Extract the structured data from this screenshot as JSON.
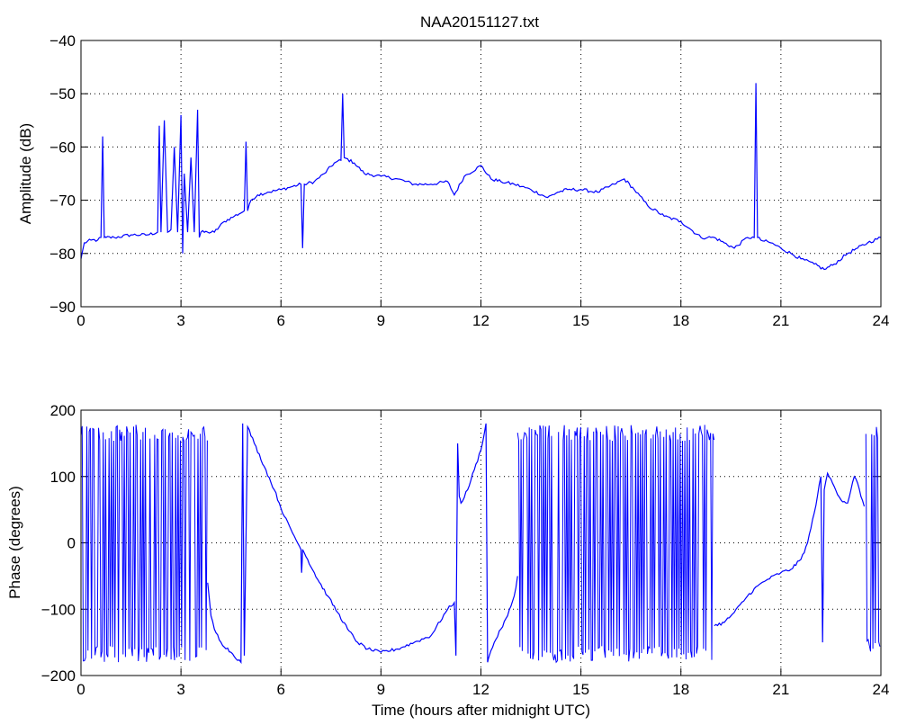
{
  "figure": {
    "title": "NAA20151127.txt"
  },
  "chart_data": [
    {
      "type": "line",
      "title": "NAA20151127.txt",
      "xlabel": "",
      "ylabel": "Amplitude (dB)",
      "xlim": [
        0,
        24
      ],
      "ylim": [
        -90,
        -40
      ],
      "xticks": [
        "0",
        "3",
        "6",
        "9",
        "12",
        "15",
        "18",
        "21",
        "24"
      ],
      "yticks": [
        "−90",
        "−80",
        "−70",
        "−60",
        "−50",
        "−40"
      ],
      "grid": true,
      "color": "#0000ff",
      "series": [
        {
          "x": [
            0,
            0.1,
            0.3,
            0.5,
            0.6,
            0.65,
            0.7,
            0.75,
            1.0,
            1.5,
            2.0,
            2.3,
            2.35,
            2.4,
            2.5,
            2.6,
            2.7,
            2.8,
            2.9,
            3.0,
            3.05,
            3.1,
            3.2,
            3.3,
            3.4,
            3.5,
            3.55,
            3.6,
            3.8,
            4.0,
            4.3,
            4.6,
            4.9,
            4.95,
            5.0,
            5.1,
            5.3,
            5.6,
            6.0,
            6.3,
            6.6,
            6.65,
            6.7,
            7.0,
            7.3,
            7.6,
            7.8,
            7.85,
            7.9,
            8.2,
            8.5,
            9.0,
            9.5,
            10.0,
            10.5,
            11.0,
            11.2,
            11.5,
            12.0,
            12.3,
            12.6,
            13.0,
            13.5,
            14.0,
            14.3,
            14.6,
            15.0,
            15.5,
            16.0,
            16.3,
            16.6,
            17.0,
            17.5,
            18.0,
            18.3,
            18.6,
            18.8,
            19.0,
            19.3,
            19.6,
            20.0,
            20.2,
            20.25,
            20.3,
            20.4,
            20.7,
            21.0,
            21.3,
            21.6,
            22.0,
            22.3,
            22.6,
            23.0,
            23.3,
            23.6,
            24.0
          ],
          "y": [
            -81,
            -78,
            -77.5,
            -77.5,
            -77,
            -58,
            -77,
            -77,
            -77,
            -76.5,
            -76.5,
            -76,
            -56,
            -76,
            -55,
            -76,
            -75.5,
            -60,
            -76,
            -54,
            -80,
            -65,
            -76,
            -62,
            -76,
            -53,
            -77,
            -76,
            -76,
            -76,
            -74,
            -73,
            -72,
            -59,
            -72,
            -70,
            -69,
            -68.5,
            -68,
            -67.5,
            -67,
            -79,
            -67,
            -66.5,
            -65,
            -63,
            -62.5,
            -50,
            -62,
            -63,
            -65,
            -65.5,
            -66,
            -67,
            -67,
            -66.5,
            -69,
            -65.5,
            -63.5,
            -66,
            -66.5,
            -67,
            -68,
            -69.5,
            -68.5,
            -68,
            -68,
            -68.5,
            -67,
            -66,
            -68,
            -71,
            -73,
            -74,
            -75.5,
            -77,
            -77,
            -77,
            -78,
            -79,
            -77,
            -77,
            -48,
            -77,
            -77.5,
            -78,
            -79,
            -80,
            -81,
            -82,
            -83,
            -82,
            -80,
            -79,
            -78,
            -77
          ]
        }
      ]
    },
    {
      "type": "line",
      "title": "",
      "xlabel": "Time (hours after midnight UTC)",
      "ylabel": "Phase (degrees)",
      "xlim": [
        0,
        24
      ],
      "ylim": [
        -200,
        200
      ],
      "xticks": [
        "0",
        "3",
        "6",
        "9",
        "12",
        "15",
        "18",
        "21",
        "24"
      ],
      "yticks": [
        "−200",
        "−100",
        "0",
        "100",
        "200"
      ],
      "grid": true,
      "color": "#0000ff",
      "noise_bands": [
        {
          "x": [
            0.0,
            3.8
          ],
          "y": [
            -180,
            178
          ]
        },
        {
          "x": [
            13.1,
            19.0
          ],
          "y": [
            -180,
            178
          ]
        },
        {
          "x": [
            23.55,
            24.0
          ],
          "y": [
            -170,
            180
          ]
        }
      ],
      "series": [
        {
          "x": [
            3.8,
            3.9,
            4.0,
            4.2,
            4.5,
            4.8,
            4.85,
            4.9,
            5.0,
            5.2,
            5.5,
            5.8,
            6.1,
            6.4,
            6.6,
            6.62,
            6.65,
            6.8,
            7.1,
            7.4,
            7.7,
            8.0,
            8.3,
            8.6,
            9.0,
            9.5,
            10.0,
            10.5,
            11.0,
            11.2,
            11.25,
            11.3,
            11.35,
            11.4,
            11.6,
            11.8,
            12.0,
            12.15,
            12.2,
            12.25,
            12.4,
            12.6,
            12.8,
            13.0,
            13.1
          ],
          "y": [
            -60,
            -110,
            -130,
            -150,
            -165,
            -180,
            180,
            -170,
            175,
            150,
            115,
            80,
            40,
            10,
            -10,
            -45,
            -10,
            -25,
            -55,
            -80,
            -105,
            -130,
            -150,
            -160,
            -165,
            -160,
            -150,
            -140,
            -100,
            -90,
            -170,
            150,
            70,
            60,
            80,
            110,
            140,
            180,
            -180,
            -170,
            -150,
            -130,
            -110,
            -80,
            -50
          ]
        },
        {
          "x": [
            19.0,
            19.3,
            19.6,
            20.0,
            20.3,
            20.6,
            21.0,
            21.3,
            21.6,
            21.8,
            22.0,
            22.2,
            22.25,
            22.3,
            22.4,
            22.6,
            22.8,
            23.0,
            23.1,
            23.2,
            23.3,
            23.4,
            23.5
          ],
          "y": [
            -125,
            -120,
            -105,
            -80,
            -65,
            -55,
            -45,
            -40,
            -25,
            0,
            45,
            100,
            -150,
            80,
            105,
            85,
            65,
            60,
            80,
            100,
            90,
            70,
            55
          ]
        }
      ]
    }
  ]
}
